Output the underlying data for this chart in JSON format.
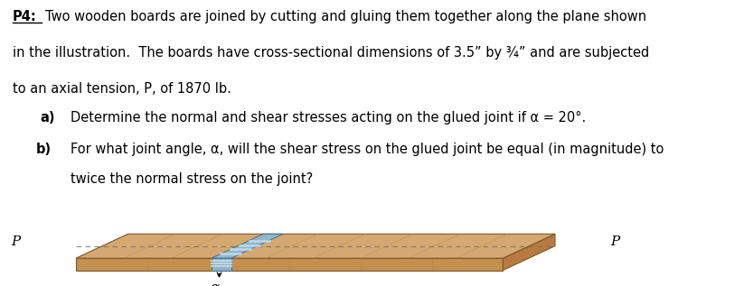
{
  "title_label": "P4:",
  "text_line1": "Two wooden boards are joined by cutting and gluing them together along the plane shown",
  "text_line2": "in the illustration.  The boards have cross-sectional dimensions of 3.5” by ¾” and are subjected",
  "text_line3": "to an axial tension, P, of 1870 lb.",
  "item_a_label": "a)",
  "item_a": "Determine the normal and shear stresses acting on the glued joint if α = 20°.",
  "item_b_label": "b)",
  "item_b": "For what joint angle, α, will the shear stress on the glued joint be equal (in magnitude) to",
  "item_b2": "twice the normal stress on the joint?",
  "bg_color": "#ffffff",
  "text_color": "#000000",
  "board_top_color": "#d4a870",
  "board_front_color": "#c49050",
  "board_right_color": "#b87a40",
  "wood_grain_color": "#bf8848",
  "joint_color": "#8ab8d8",
  "joint_stripe_color": "#c0dcea",
  "arrow_color": "#cc0000",
  "dash_color": "#666666",
  "alpha_label": "α",
  "p_label": "P",
  "fontsize_main": 10.5,
  "fontsize_label": 11
}
